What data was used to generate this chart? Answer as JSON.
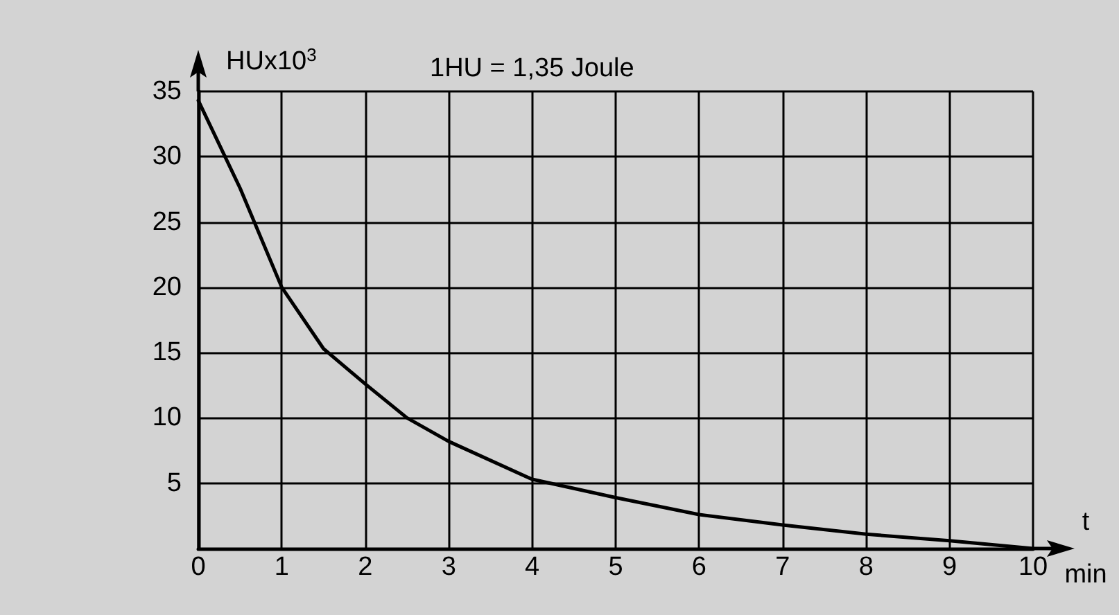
{
  "chart_data": {
    "type": "line",
    "xlabel": "t\nmin",
    "ylabel": "HUx10$^{3}$",
    "annotations": [
      "1HU = 1,35 Joule"
    ],
    "x": [
      0,
      0.5,
      1,
      1.5,
      2,
      2.5,
      3,
      4,
      5,
      6,
      7,
      8,
      9,
      10
    ],
    "series": [
      {
        "color": "#000000",
        "values": [
          34.3,
          27.6,
          20,
          15.3,
          12.6,
          10,
          8.2,
          5.3,
          3.9,
          2.6,
          1.8,
          1.1,
          0.6,
          0
        ]
      }
    ],
    "xlim": [
      0,
      10
    ],
    "xticks": [
      0,
      1,
      2,
      3,
      4,
      5,
      6,
      7,
      8,
      9,
      10
    ],
    "ylim": [
      0,
      35
    ],
    "yticks": [
      5,
      10,
      15,
      20,
      25,
      30,
      35
    ],
    "grid": true,
    "marker": "none",
    "line_style": "solid"
  }
}
